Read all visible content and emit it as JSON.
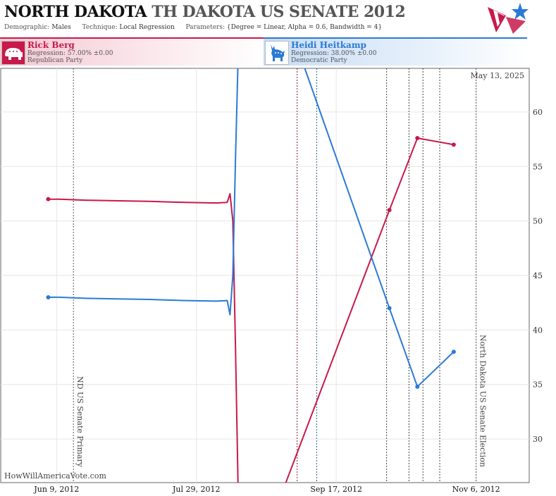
{
  "header": {
    "title_state": "NORTH DAKOTA",
    "title_overlap": "TH DAKOTA",
    "title_race": "US SENATE 2012",
    "demographic_label": "Demographic:",
    "demographic_value": "Males",
    "technique_label": "Technique:",
    "technique_value": "Local Regression",
    "parameters_label": "Parameters:",
    "parameters_value": "{Degree = Linear, Alpha = 0.6, Bandwidth = 4}",
    "logo_icon": "star-flag-logo-icon"
  },
  "candidates": [
    {
      "name": "Rick Berg",
      "regression": "Regression: 57.00% ±0.00",
      "party": "Republican Party",
      "icon": "elephant-icon",
      "color": "#c8194a"
    },
    {
      "name": "Heidi Heitkamp",
      "regression": "Regression: 38.00% ±0.00",
      "party": "Democratic Party",
      "icon": "donkey-icon",
      "color": "#2a7ad6"
    }
  ],
  "chart_data": {
    "type": "line",
    "date_label": "May 13, 2025",
    "watermark": "HowWillAmericaVote.com",
    "ylim": [
      26,
      64
    ],
    "yticks": [
      30,
      35,
      40,
      45,
      50,
      55,
      60
    ],
    "xlim": [
      "2012-05-20",
      "2012-11-25"
    ],
    "xticks": [
      {
        "date": "2012-06-09",
        "label": "Jun 9, 2012"
      },
      {
        "date": "2012-07-29",
        "label": "Jul 29, 2012"
      },
      {
        "date": "2012-09-17",
        "label": "Sep 17, 2012"
      },
      {
        "date": "2012-11-06",
        "label": "Nov 6, 2012"
      }
    ],
    "grid": true,
    "events": [
      {
        "date": "2012-06-15",
        "label": "ND US Senate Primary",
        "color": "#555555"
      },
      {
        "date": "2012-11-06",
        "label": "North Dakota US Senate Election",
        "color": "#555555"
      }
    ],
    "poll_lines": [
      {
        "date": "2012-09-03",
        "color": "#8a1538"
      },
      {
        "date": "2012-09-10",
        "color": "#1c6a7c"
      },
      {
        "date": "2012-10-05",
        "color": "#444444"
      },
      {
        "date": "2012-10-13",
        "color": "#444444"
      },
      {
        "date": "2012-10-18",
        "color": "#444444"
      },
      {
        "date": "2012-10-24",
        "color": "#444444"
      }
    ],
    "series": [
      {
        "name": "Rick Berg",
        "color": "#c8194a",
        "line": [
          [
            "2012-06-06",
            52.0
          ],
          [
            "2012-06-10",
            52.0
          ],
          [
            "2012-06-20",
            51.9
          ],
          [
            "2012-07-01",
            51.85
          ],
          [
            "2012-07-12",
            51.8
          ],
          [
            "2012-07-25",
            51.7
          ],
          [
            "2012-08-05",
            51.65
          ],
          [
            "2012-08-09",
            51.7
          ],
          [
            "2012-08-10",
            52.5
          ],
          [
            "2012-08-11",
            50.0
          ],
          [
            "2012-08-12",
            38.0
          ],
          [
            "2012-08-13",
            24.0
          ],
          [
            "2012-08-27",
            24.0
          ],
          [
            "2012-10-06",
            51.0
          ],
          [
            "2012-10-16",
            57.6
          ],
          [
            "2012-10-29",
            57.0
          ]
        ],
        "points": [
          [
            "2012-06-06",
            52.0
          ],
          [
            "2012-10-06",
            51.0
          ],
          [
            "2012-10-16",
            57.6
          ],
          [
            "2012-10-29",
            57.0
          ]
        ]
      },
      {
        "name": "Heidi Heitkamp",
        "color": "#2a7ad6",
        "line": [
          [
            "2012-06-06",
            43.0
          ],
          [
            "2012-06-10",
            43.0
          ],
          [
            "2012-06-20",
            42.9
          ],
          [
            "2012-07-01",
            42.85
          ],
          [
            "2012-07-12",
            42.8
          ],
          [
            "2012-07-25",
            42.7
          ],
          [
            "2012-08-05",
            42.65
          ],
          [
            "2012-08-09",
            42.7
          ],
          [
            "2012-08-10",
            41.4
          ],
          [
            "2012-08-11",
            45.0
          ],
          [
            "2012-08-12",
            56.0
          ],
          [
            "2012-08-13",
            66.0
          ],
          [
            "2012-09-03",
            66.0
          ],
          [
            "2012-10-06",
            42.0
          ],
          [
            "2012-10-16",
            34.8
          ],
          [
            "2012-10-29",
            38.0
          ]
        ],
        "points": [
          [
            "2012-06-06",
            43.0
          ],
          [
            "2012-10-06",
            42.0
          ],
          [
            "2012-10-16",
            34.8
          ],
          [
            "2012-10-29",
            38.0
          ]
        ]
      }
    ]
  }
}
